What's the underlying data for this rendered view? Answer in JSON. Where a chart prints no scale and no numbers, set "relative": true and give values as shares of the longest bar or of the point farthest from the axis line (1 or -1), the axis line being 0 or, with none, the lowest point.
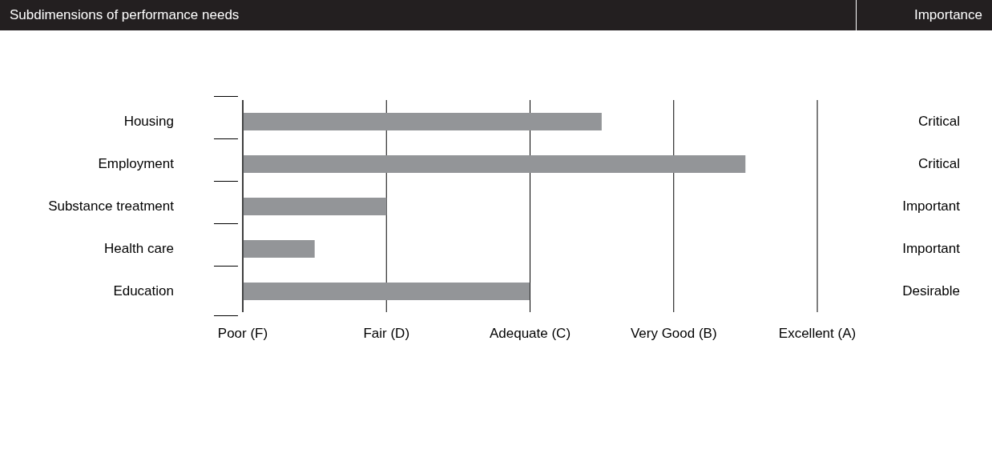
{
  "chart_data": {
    "type": "bar",
    "orientation": "horizontal",
    "relative": true,
    "title": "Subdimensions of performance needs",
    "categories": [
      "Housing",
      "Employment",
      "Substance treatment",
      "Health care",
      "Education"
    ],
    "y2_categories": [
      "Critical",
      "Critical",
      "Important",
      "Important",
      "Desirable"
    ],
    "values": [
      0.714,
      1,
      0.286,
      0.143,
      0.571
    ],
    "color": "#939598",
    "xlim": [
      0,
      1.143
    ],
    "annotations": [
      "Importance",
      "Poor (F)",
      "Fair (D)",
      "Adequate (C)",
      "Very Good (B)",
      "Excellent (A)"
    ],
    "grid": "x"
  }
}
